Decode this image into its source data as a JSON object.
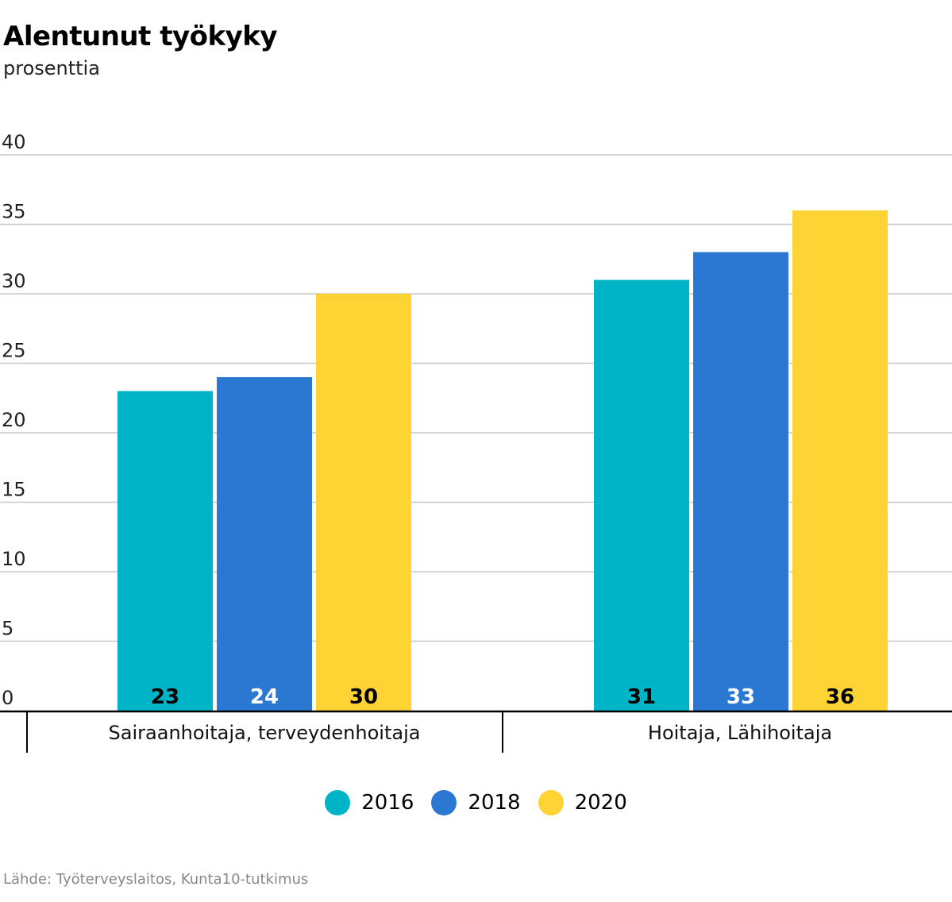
{
  "chart_data": {
    "type": "bar",
    "title": "Alentunut työkyky",
    "subtitle": "prosenttia",
    "ylabel": "prosenttia",
    "xlabel": "",
    "ylim": [
      0,
      40
    ],
    "yticks": [
      0,
      5,
      10,
      15,
      20,
      25,
      30,
      35,
      40
    ],
    "grid": true,
    "categories": [
      "Sairaanhoitaja, terveydenhoitaja",
      "Hoitaja, Lähihoitaja"
    ],
    "series": [
      {
        "name": "2016",
        "values": [
          23,
          31
        ],
        "color": "#00b4c8",
        "label_color": "#000000"
      },
      {
        "name": "2018",
        "values": [
          24,
          33
        ],
        "color": "#2b78d2",
        "label_color": "#ffffff"
      },
      {
        "name": "2020",
        "values": [
          30,
          36
        ],
        "color": "#fed435",
        "label_color": "#000000"
      }
    ],
    "legend_position": "bottom-center",
    "source": "Lähde: Työterveyslaitos, Kunta10-tutkimus"
  }
}
